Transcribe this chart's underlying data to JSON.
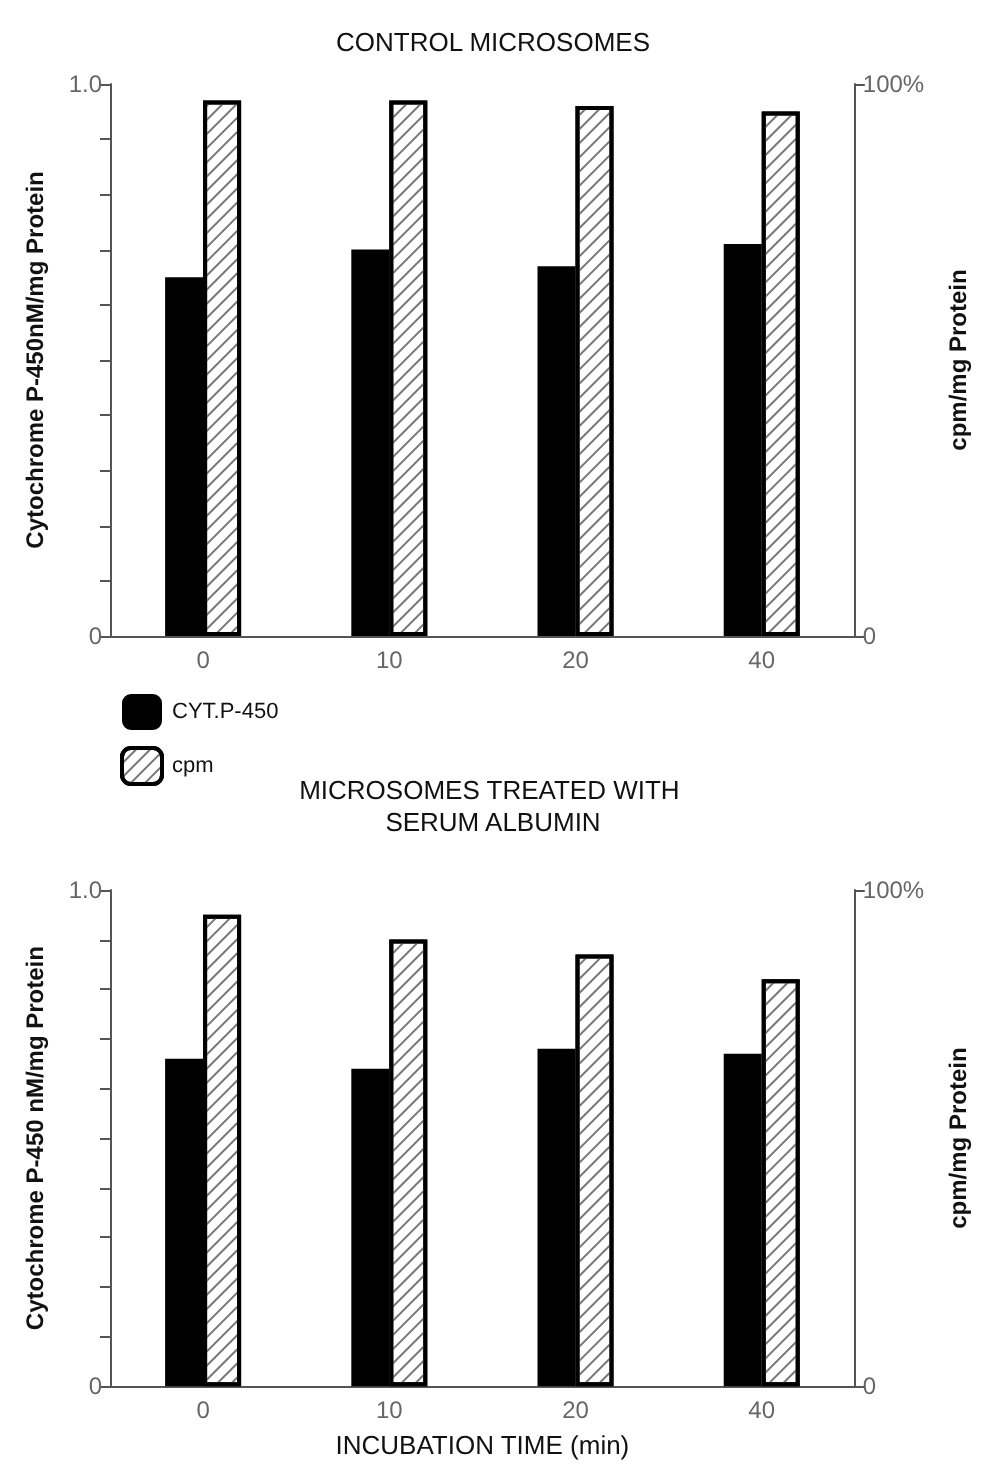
{
  "chart_data": [
    {
      "type": "bar",
      "title": "CONTROL MICROSOMES",
      "categories": [
        "0",
        "10",
        "20",
        "40"
      ],
      "series": [
        {
          "color": "#000000",
          "values": [
            0.65,
            0.7,
            0.67,
            0.71
          ]
        },
        {
          "color": "#ffffff",
          "values": [
            97,
            97,
            96,
            95
          ],
          "axis": "y2"
        }
      ],
      "ylabel": "Cytochrome P-450nM/mg Protein",
      "ylim": [
        0,
        1
      ],
      "yticks": [
        0,
        {
          "value": 0.1,
          "label": null
        },
        {
          "value": 0.2,
          "label": null
        },
        {
          "value": 0.3,
          "label": null
        },
        {
          "value": 0.4,
          "label": null
        },
        {
          "value": 0.5,
          "label": null
        },
        {
          "value": 0.6,
          "label": null
        },
        {
          "value": 0.7,
          "label": null
        },
        {
          "value": 0.8,
          "label": null
        },
        {
          "value": 0.9,
          "label": null
        },
        {
          "value": 1,
          "label": "1.0"
        }
      ],
      "y2label": "cpm/mg Protein",
      "y2lim": [
        0,
        100
      ],
      "y2ticks": [
        0,
        {
          "value": 100,
          "label": "100%"
        }
      ],
      "legend": false,
      "grid": false
    },
    {
      "type": "bar",
      "title": "MICROSOMES TREATED WITH SERUM ALBUMIN",
      "categories": [
        "0",
        "10",
        "20",
        "40"
      ],
      "series": [
        {
          "name": "CYT.P-450",
          "color": "#000000",
          "values": [
            0.66,
            0.64,
            0.68,
            0.67
          ]
        },
        {
          "name": "cpm",
          "color": "#ffffff",
          "values": [
            95,
            90,
            87,
            82
          ],
          "axis": "y2"
        }
      ],
      "xlabel": "INCUBATION TIME (min)",
      "ylabel": "Cytochrome P-450 nM/mg Protein",
      "ylim": [
        0,
        1
      ],
      "yticks": [
        0,
        {
          "value": 0.1,
          "label": null
        },
        {
          "value": 0.2,
          "label": null
        },
        {
          "value": 0.3,
          "label": null
        },
        {
          "value": 0.4,
          "label": null
        },
        {
          "value": 0.5,
          "label": null
        },
        {
          "value": 0.6,
          "label": null
        },
        {
          "value": 0.7,
          "label": null
        },
        {
          "value": 0.8,
          "label": null
        },
        {
          "value": 0.9,
          "label": null
        },
        {
          "value": 1,
          "label": "1.0"
        }
      ],
      "y2label": "cpm/mg Protein",
      "y2lim": [
        0,
        100
      ],
      "y2ticks": [
        0,
        {
          "value": 100,
          "label": "100%"
        }
      ],
      "legend": "top left",
      "grid": false
    }
  ]
}
